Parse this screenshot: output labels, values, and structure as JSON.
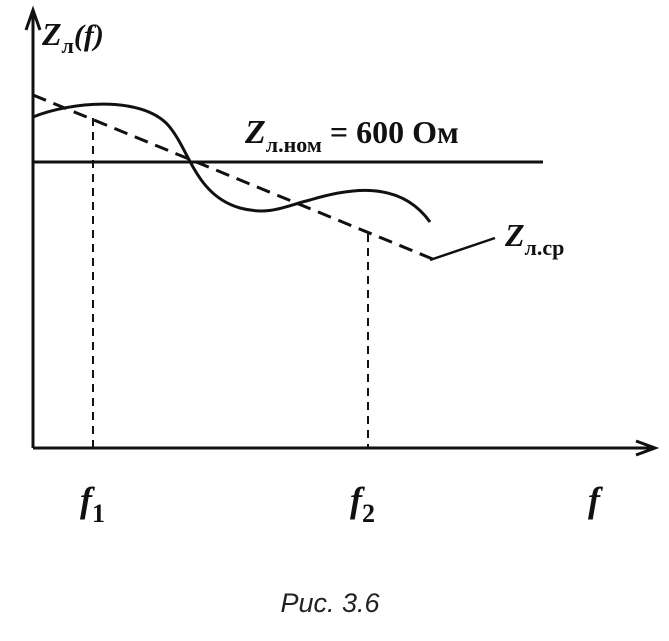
{
  "y_axis_label": {
    "symbol": "Z",
    "subscript": "л",
    "suffix": "(f)"
  },
  "nominal_line_label": {
    "symbol": "Z",
    "subscript": "л.ном",
    "rest": "= 600 Ом"
  },
  "average_line_label": {
    "symbol": "Z",
    "subscript": "л.ср"
  },
  "x_marks": [
    {
      "symbol": "f",
      "subscript": "1"
    },
    {
      "symbol": "f",
      "subscript": "2"
    }
  ],
  "x_axis_label": "f",
  "caption": "Рис. 3.6"
}
